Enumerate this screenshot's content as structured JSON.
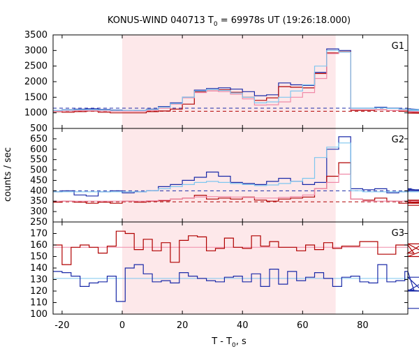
{
  "title": "KONUS-WIND 040713 T",
  "title_sub": "0",
  "title_rest": " = 69978s UT (19:26:18.000)",
  "ylabel": "counts / sec",
  "xlabel": "T - T",
  "xlabel_sub": "0",
  "xlabel_rest": ", s",
  "colors": {
    "red": "#b00000",
    "blue": "#1a2aa8",
    "pink": "#f08aa8",
    "cyan": "#7ec6ef",
    "shade": "#fde8ea"
  },
  "chart_data": {
    "type": "line",
    "x_range": [
      -23,
      95
    ],
    "x_ticks": [
      -20,
      0,
      20,
      40,
      60,
      80
    ],
    "shaded_interval": [
      0,
      71
    ],
    "panels": [
      {
        "label": "G1",
        "ylim": [
          500,
          3500
        ],
        "y_ticks": [
          500,
          1000,
          1500,
          2000,
          2500,
          3000,
          3500
        ],
        "background_levels": [
          {
            "name": "red-bg",
            "value": 1050,
            "color": "red"
          },
          {
            "name": "blue-bg",
            "value": 1150,
            "color": "blue"
          }
        ],
        "series": [
          {
            "color": "blue",
            "step": 4.0,
            "x0": -24,
            "values": [
              1080,
              1100,
              1120,
              1130,
              1110,
              1090,
              1080,
              1060,
              1120,
              1200,
              1320,
              1500,
              1730,
              1780,
              1800,
              1760,
              1680,
              1550,
              1580,
              1960,
              1900,
              1880,
              2300,
              3050,
              3000,
              1150,
              1150,
              1180,
              1150,
              1120,
              1130,
              1100,
              1090,
              1060,
              1050
            ]
          },
          {
            "color": "red",
            "step": 4.0,
            "x0": -24,
            "values": [
              1040,
              1020,
              1040,
              1060,
              1020,
              1000,
              1000,
              1000,
              1040,
              1060,
              1120,
              1280,
              1680,
              1700,
              1740,
              1660,
              1500,
              1400,
              1480,
              1840,
              1820,
              1800,
              2260,
              2920,
              2960,
              1080,
              1080,
              1100,
              1080,
              1050,
              1060,
              1020,
              1010,
              1000,
              990
            ]
          },
          {
            "color": "pink",
            "step": 4.0,
            "x0": -24,
            "values": [
              1050,
              1060,
              1070,
              1070,
              1060,
              1050,
              1050,
              1050,
              1080,
              1150,
              1280,
              1480,
              1650,
              1700,
              1680,
              1600,
              1450,
              1250,
              1260,
              1350,
              1500,
              1650,
              2100,
              2900,
              2950,
              1100,
              1100,
              1100,
              1080,
              1080,
              1070,
              1060,
              1050,
              1040,
              1030
            ]
          },
          {
            "color": "cyan",
            "step": 4.0,
            "x0": -24,
            "values": [
              1080,
              1090,
              1100,
              1100,
              1090,
              1080,
              1080,
              1080,
              1110,
              1180,
              1300,
              1500,
              1700,
              1750,
              1720,
              1640,
              1500,
              1320,
              1350,
              1500,
              1700,
              1900,
              2500,
              3000,
              2950,
              1150,
              1150,
              1160,
              1140,
              1120,
              1110,
              1100,
              1090,
              1080,
              1070
            ]
          }
        ]
      },
      {
        "label": "G2",
        "ylim": [
          250,
          700
        ],
        "y_ticks": [
          250,
          300,
          350,
          400,
          450,
          500,
          550,
          600,
          650
        ],
        "background_levels": [
          {
            "name": "blue-bg",
            "value": 400,
            "color": "blue"
          },
          {
            "name": "red-bg",
            "value": 347,
            "color": "red"
          }
        ],
        "series": [
          {
            "color": "blue",
            "step": 4.0,
            "x0": -24,
            "values": [
              395,
              400,
              380,
              375,
              395,
              400,
              390,
              395,
              400,
              420,
              430,
              450,
              465,
              490,
              470,
              440,
              435,
              430,
              445,
              460,
              445,
              430,
              440,
              600,
              660,
              410,
              405,
              410,
              390,
              395,
              410,
              400,
              405,
              405,
              400
            ]
          },
          {
            "color": "red",
            "step": 4.0,
            "x0": -24,
            "values": [
              345,
              350,
              345,
              340,
              345,
              340,
              350,
              345,
              350,
              352,
              360,
              365,
              378,
              360,
              365,
              360,
              370,
              355,
              350,
              360,
              365,
              370,
              410,
              470,
              535,
              360,
              355,
              365,
              350,
              340,
              350,
              355,
              340,
              345,
              330
            ]
          },
          {
            "color": "pink",
            "step": 4.0,
            "x0": -24,
            "values": [
              350,
              350,
              350,
              350,
              350,
              350,
              350,
              350,
              352,
              355,
              360,
              365,
              370,
              372,
              372,
              370,
              368,
              365,
              365,
              368,
              372,
              380,
              410,
              440,
              480,
              360,
              350,
              350,
              350,
              350,
              350,
              350,
              350,
              350,
              350
            ]
          },
          {
            "color": "cyan",
            "step": 4.0,
            "x0": -24,
            "values": [
              395,
              395,
              395,
              395,
              395,
              395,
              395,
              395,
              400,
              410,
              420,
              430,
              440,
              445,
              440,
              435,
              430,
              425,
              428,
              435,
              445,
              460,
              560,
              610,
              630,
              400,
              395,
              395,
              395,
              395,
              395,
              395,
              395,
              395,
              395
            ]
          }
        ]
      },
      {
        "label": "G3",
        "ylim": [
          100,
          180
        ],
        "y_ticks": [
          100,
          110,
          120,
          130,
          140,
          150,
          160,
          170
        ],
        "background_levels": [
          {
            "name": "red-bg",
            "value": 158,
            "color": "pink"
          },
          {
            "name": "blue-bg",
            "value": 131,
            "color": "cyan"
          }
        ],
        "series": [
          {
            "color": "red",
            "step": 3.0,
            "x0": -23,
            "values": [
              160,
              143,
              158,
              160,
              158,
              153,
              159,
              172,
              170,
              156,
              165,
              155,
              162,
              145,
              164,
              168,
              167,
              155,
              157,
              166,
              158,
              157,
              168,
              159,
              163,
              158,
              158,
              155,
              160,
              156,
              162,
              157,
              159,
              159,
              163,
              163,
              152,
              152,
              160,
              160,
              153,
              161,
              150,
              161
            ]
          },
          {
            "color": "blue",
            "step": 3.0,
            "x0": -23,
            "values": [
              137,
              136,
              133,
              124,
              127,
              128,
              133,
              111,
              140,
              143,
              135,
              128,
              129,
              127,
              136,
              133,
              131,
              129,
              128,
              132,
              133,
              128,
              135,
              124,
              139,
              126,
              137,
              129,
              132,
              136,
              131,
              124,
              132,
              133,
              128,
              127,
              143,
              128,
              129,
              137,
              121,
              120,
              132,
              105
            ]
          }
        ]
      }
    ]
  }
}
